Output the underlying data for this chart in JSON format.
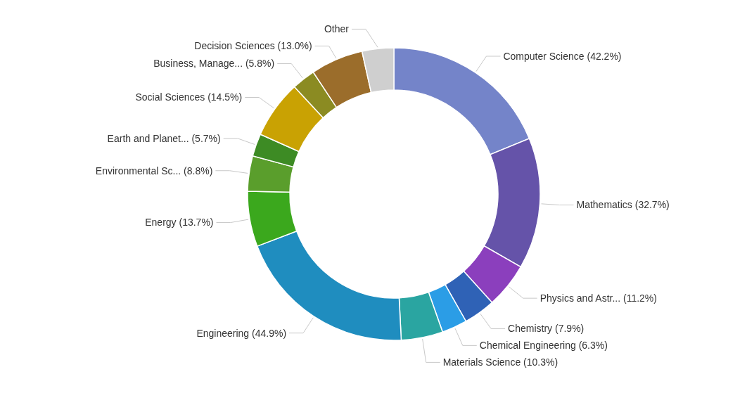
{
  "chart_data": {
    "type": "donut",
    "categories": [
      "Computer Science (42.2%)",
      "Mathematics (32.7%)",
      "Physics and Astr... (11.2%)",
      "Chemistry (7.9%)",
      "Chemical Engineering (6.3%)",
      "Materials Science (10.3%)",
      "Engineering (44.9%)",
      "Energy (13.7%)",
      "Environmental Sc... (8.8%)",
      "Earth and Planet... (5.7%)",
      "Social Sciences (14.5%)",
      "Business, Manage... (5.8%)",
      "Decision Sciences (13.0%)",
      "Other"
    ],
    "values": [
      18.8,
      14.5,
      5.0,
      3.5,
      2.8,
      4.6,
      20.0,
      6.1,
      3.9,
      2.5,
      6.4,
      2.6,
      5.8,
      3.5
    ],
    "colors": [
      "#7484c9",
      "#6553a9",
      "#8b3fbd",
      "#2f62b6",
      "#2b9de6",
      "#2aa5a1",
      "#1f8dbf",
      "#3ba81d",
      "#5a9e2c",
      "#3d8b24",
      "#c9a203",
      "#8b8b22",
      "#9b6d2b",
      "#cfcfcf"
    ]
  }
}
